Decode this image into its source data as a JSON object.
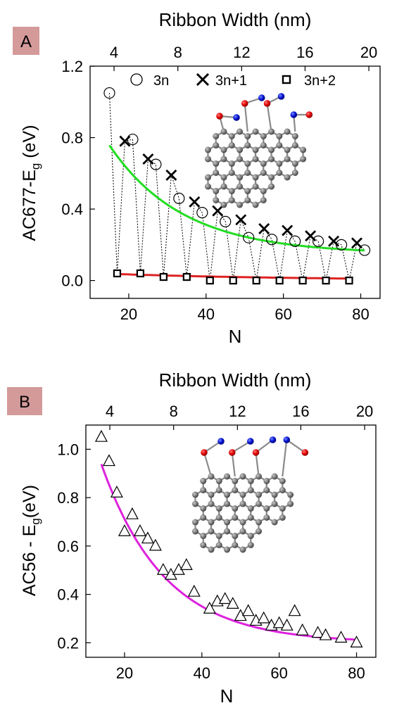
{
  "chart_data": [
    {
      "panel": "A",
      "type": "scatter",
      "top_xlabel": "Ribbon Width (nm)",
      "top_ticks": [
        "4",
        "8",
        "12",
        "16",
        "20"
      ],
      "top_tick_N": [
        16.2,
        32.7,
        49.2,
        65.6,
        82.1
      ],
      "xlabel": "N",
      "ylabel_main": "AC677-E",
      "ylabel_sub": "g",
      "ylabel_tail": " (eV)",
      "xlim": [
        10,
        85
      ],
      "ylim": [
        -0.1,
        1.2
      ],
      "x_ticks": [
        20,
        40,
        60,
        80
      ],
      "y_ticks": [
        0.0,
        0.4,
        0.8,
        1.2
      ],
      "y_tick_labels": [
        "0.0",
        "0.4",
        "0.8",
        "1.2"
      ],
      "legend": "top",
      "series": [
        {
          "name": "3n",
          "marker": "circle",
          "x": [
            15,
            21,
            27,
            33,
            39,
            45,
            51,
            57,
            63,
            69,
            75,
            81
          ],
          "y": [
            1.05,
            0.79,
            0.65,
            0.46,
            0.38,
            0.33,
            0.24,
            0.23,
            0.22,
            0.22,
            0.2,
            0.17
          ]
        },
        {
          "name": "3n+1",
          "marker": "x",
          "x": [
            19,
            25,
            31,
            37,
            43,
            49,
            55,
            61,
            67,
            73,
            79
          ],
          "y": [
            0.78,
            0.68,
            0.59,
            0.44,
            0.39,
            0.34,
            0.29,
            0.28,
            0.25,
            0.22,
            0.21
          ]
        },
        {
          "name": "3n+2",
          "marker": "square",
          "x": [
            17,
            23,
            29,
            35,
            41,
            47,
            53,
            59,
            65,
            71,
            77
          ],
          "y": [
            0.04,
            0.04,
            0.02,
            0.02,
            0.0,
            0.0,
            0.0,
            0.0,
            0.0,
            0.0,
            0.0
          ]
        }
      ],
      "zigzag_order_x": [
        15,
        17,
        19,
        21,
        23,
        25,
        27,
        29,
        31,
        33,
        35,
        37,
        39,
        41,
        43,
        45,
        47,
        49,
        51,
        53,
        55,
        57,
        59,
        61,
        63,
        65,
        67,
        69,
        71,
        73,
        75,
        77,
        79,
        81
      ],
      "fits": [
        {
          "color": "#22dd22",
          "a": 0.15,
          "b": 1.34,
          "c": 0.0528,
          "x0": 15,
          "x1": 81
        },
        {
          "color": "#dd2222",
          "a": 0.0,
          "b": 0.051,
          "c": 0.02,
          "x0": 17,
          "x1": 77
        }
      ],
      "colors": {
        "fit_3n": "#22dd22",
        "fit_3n2": "#dd2222"
      }
    },
    {
      "panel": "B",
      "type": "scatter",
      "top_xlabel": "Ribbon Width (nm)",
      "top_ticks": [
        "4",
        "8",
        "12",
        "16",
        "20"
      ],
      "top_tick_N": [
        16.2,
        32.7,
        49.2,
        65.6,
        82.1
      ],
      "xlabel": "N",
      "ylabel_main": "AC56 - E",
      "ylabel_sub": "g",
      "ylabel_tail": "(eV)",
      "xlim": [
        10,
        85
      ],
      "ylim": [
        0.14,
        1.1
      ],
      "x_ticks": [
        20,
        40,
        60,
        80
      ],
      "y_ticks": [
        0.2,
        0.4,
        0.6,
        0.8,
        1.0
      ],
      "y_tick_labels": [
        "0.2",
        "0.4",
        "0.6",
        "0.8",
        "1.0"
      ],
      "series": [
        {
          "marker": "triangle",
          "x": [
            14,
            16,
            18,
            20,
            22,
            24,
            26,
            28,
            30,
            32,
            34,
            36,
            38,
            42,
            44,
            46,
            48,
            50,
            52,
            54,
            56,
            58,
            60,
            62,
            64,
            66,
            70,
            72,
            76,
            80
          ],
          "y": [
            1.05,
            0.95,
            0.82,
            0.66,
            0.73,
            0.66,
            0.63,
            0.6,
            0.5,
            0.48,
            0.5,
            0.52,
            0.41,
            0.34,
            0.37,
            0.38,
            0.36,
            0.31,
            0.33,
            0.29,
            0.3,
            0.27,
            0.28,
            0.27,
            0.33,
            0.25,
            0.24,
            0.23,
            0.22,
            0.2
          ]
        }
      ],
      "fits": [
        {
          "color": "#dd22dd",
          "a": 0.2,
          "b": 1.74,
          "c": 0.0612,
          "x0": 14,
          "x1": 80
        }
      ],
      "colors": {
        "fit": "#dd22dd"
      }
    }
  ],
  "panels": [
    {
      "label": "A",
      "label_bg": "#d49a9a"
    },
    {
      "label": "B",
      "label_bg": "#d49a9a"
    }
  ]
}
